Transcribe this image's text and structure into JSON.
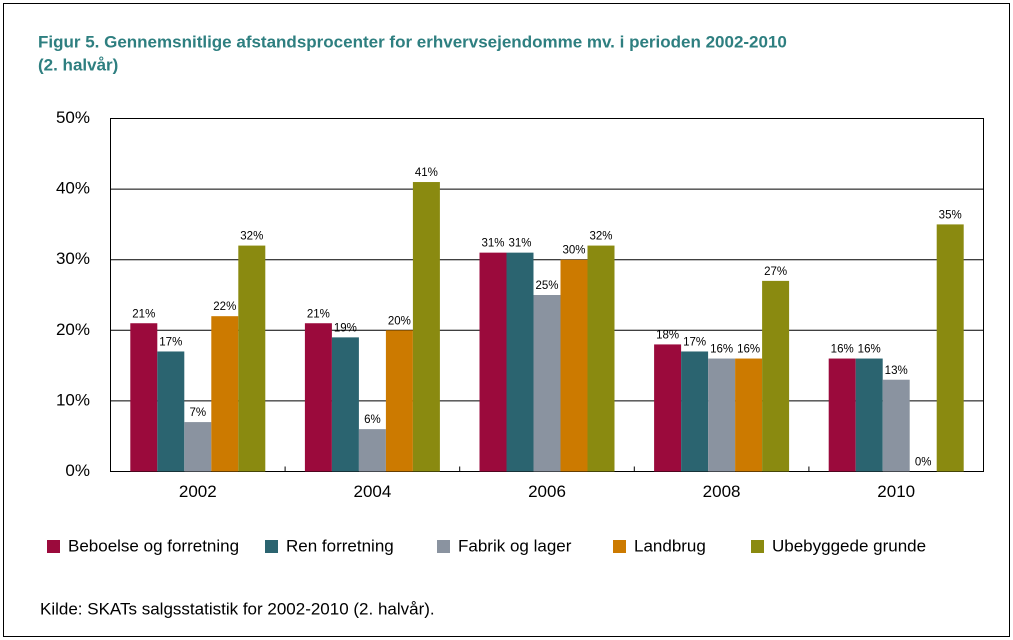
{
  "chart_data": {
    "type": "bar",
    "title": [
      "Figur 5. Gennemsnitlige afstandsprocenter for erhvervsejendomme mv. i perioden 2002-2010",
      "(2. halvår)"
    ],
    "categories": [
      "2002",
      "2004",
      "2006",
      "2008",
      "2010"
    ],
    "series": [
      {
        "name": "Beboelse og forretning",
        "color": "#9b0a3c",
        "values": [
          21,
          21,
          31,
          18,
          16
        ],
        "value_labels": [
          "21%",
          "21%",
          "31%",
          "18%",
          "16%"
        ]
      },
      {
        "name": "Ren forretning",
        "color": "#2b6470",
        "values": [
          17,
          19,
          31,
          17,
          16
        ],
        "value_labels": [
          "17%",
          "19%",
          "31%",
          "17%",
          "16%"
        ]
      },
      {
        "name": "Fabrik og lager",
        "color": "#8a93a0",
        "values": [
          7,
          6,
          25,
          16,
          13
        ],
        "value_labels": [
          "7%",
          "6%",
          "25%",
          "16%",
          "13%"
        ]
      },
      {
        "name": "Landbrug",
        "color": "#cc7a00",
        "values": [
          22,
          20,
          30,
          16,
          0
        ],
        "value_labels": [
          "22%",
          "20%",
          "30%",
          "16%",
          "0%"
        ]
      },
      {
        "name": "Ubebyggede grunde",
        "color": "#8a8a10",
        "values": [
          32,
          41,
          32,
          27,
          35
        ],
        "value_labels": [
          "32%",
          "41%",
          "32%",
          "27%",
          "35%"
        ]
      }
    ],
    "ylim": [
      0,
      50
    ],
    "yticks": [
      {
        "value": 0,
        "label": "0%"
      },
      {
        "value": 10,
        "label": "10%"
      },
      {
        "value": 20,
        "label": "20%"
      },
      {
        "value": 30,
        "label": "30%"
      },
      {
        "value": 40,
        "label": "40%"
      },
      {
        "value": 50,
        "label": "50%"
      }
    ],
    "grid": true,
    "legend": "bottom",
    "source": "Kilde:  SKATs salgsstatistik for 2002-2010 (2. halvår)."
  }
}
